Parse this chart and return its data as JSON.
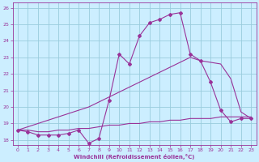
{
  "xlabel": "Windchill (Refroidissement éolien,°C)",
  "bg_color": "#cceeff",
  "grid_color": "#99ccdd",
  "line_color": "#993399",
  "xlim": [
    -0.5,
    23.5
  ],
  "ylim": [
    17.7,
    26.3
  ],
  "xticks": [
    0,
    1,
    2,
    3,
    4,
    5,
    6,
    7,
    8,
    9,
    10,
    11,
    12,
    13,
    14,
    15,
    16,
    17,
    18,
    19,
    20,
    21,
    22,
    23
  ],
  "yticks": [
    18,
    19,
    20,
    21,
    22,
    23,
    24,
    25,
    26
  ],
  "line1_x": [
    0,
    1,
    2,
    3,
    4,
    5,
    6,
    7,
    8,
    9,
    10,
    11,
    12,
    13,
    14,
    15,
    16,
    17,
    18,
    19,
    20,
    21,
    22,
    23
  ],
  "line1_y": [
    18.6,
    18.5,
    18.3,
    18.3,
    18.3,
    18.4,
    18.6,
    17.8,
    18.1,
    20.4,
    23.2,
    22.6,
    24.3,
    25.1,
    25.3,
    25.6,
    25.7,
    23.2,
    22.8,
    21.5,
    19.8,
    19.1,
    19.3,
    19.3
  ],
  "line2_x": [
    0,
    1,
    2,
    3,
    4,
    5,
    6,
    7,
    8,
    9,
    10,
    11,
    12,
    13,
    14,
    15,
    16,
    17,
    18,
    19,
    20,
    21,
    22,
    23
  ],
  "line2_y": [
    18.6,
    18.8,
    19.0,
    19.2,
    19.4,
    19.6,
    19.8,
    20.0,
    20.3,
    20.6,
    20.9,
    21.2,
    21.5,
    21.8,
    22.1,
    22.4,
    22.7,
    23.0,
    22.8,
    22.7,
    22.6,
    21.7,
    19.7,
    19.3
  ],
  "line3_x": [
    0,
    1,
    2,
    3,
    4,
    5,
    6,
    7,
    8,
    9,
    10,
    11,
    12,
    13,
    14,
    15,
    16,
    17,
    18,
    19,
    20,
    21,
    22,
    23
  ],
  "line3_y": [
    18.6,
    18.6,
    18.5,
    18.5,
    18.6,
    18.6,
    18.7,
    18.7,
    18.8,
    18.9,
    18.9,
    19.0,
    19.0,
    19.1,
    19.1,
    19.2,
    19.2,
    19.3,
    19.3,
    19.3,
    19.4,
    19.4,
    19.4,
    19.4
  ]
}
